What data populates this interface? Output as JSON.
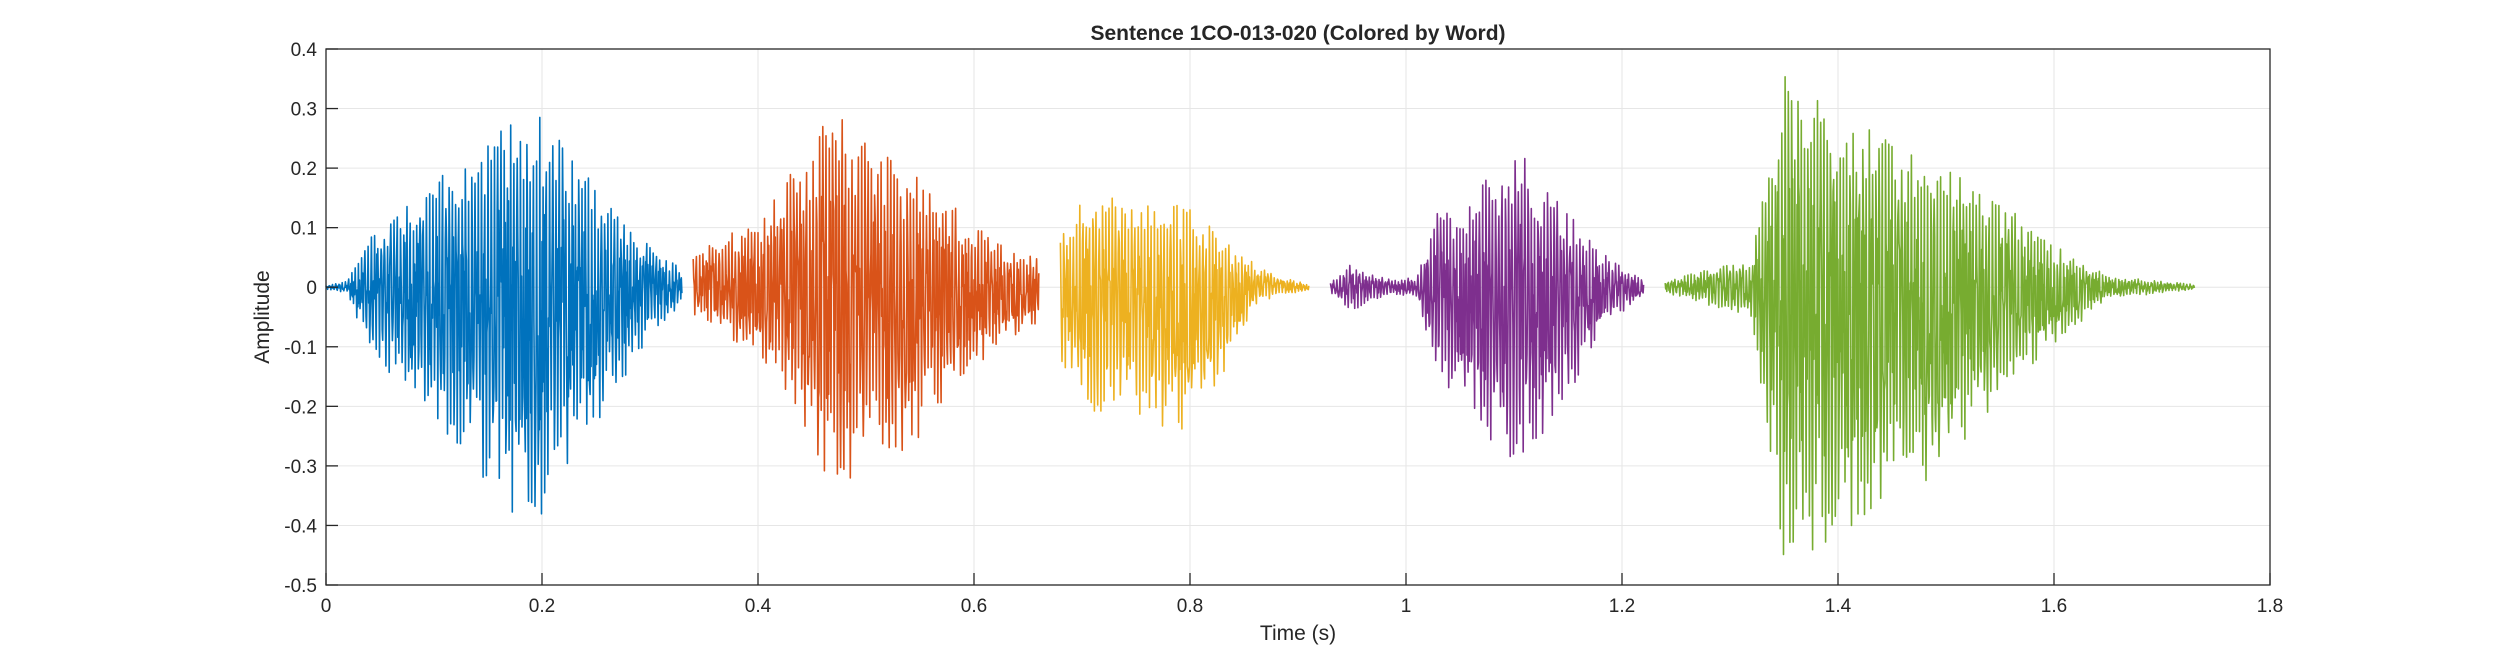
{
  "chart_data": {
    "type": "line",
    "title": "Sentence 1CO-013-020 (Colored by Word)",
    "xlabel": "Time (s)",
    "ylabel": "Amplitude",
    "xlim": [
      0,
      1.8
    ],
    "ylim": [
      -0.5,
      0.4
    ],
    "xticks": [
      0,
      0.2,
      0.4,
      0.6,
      0.8,
      1,
      1.2,
      1.4,
      1.6,
      1.8
    ],
    "xtick_labels": [
      "0",
      "0.2",
      "0.4",
      "0.6",
      "0.8",
      "1",
      "1.2",
      "1.4",
      "1.6",
      "1.8"
    ],
    "yticks": [
      -0.5,
      -0.4,
      -0.3,
      -0.2,
      -0.1,
      0,
      0.1,
      0.2,
      0.3,
      0.4
    ],
    "ytick_labels": [
      "-0.5",
      "-0.4",
      "-0.3",
      "-0.2",
      "-0.1",
      "0",
      "0.1",
      "0.2",
      "0.3",
      "0.4"
    ],
    "grid": true,
    "series": [
      {
        "color": "#0072BD",
        "time_range": [
          0,
          0.33
        ],
        "envelope": {
          "t": [
            0,
            0.02,
            0.03,
            0.06,
            0.1,
            0.15,
            0.19,
            0.22,
            0.26,
            0.3,
            0.33
          ],
          "max": [
            0.003,
            0.01,
            0.06,
            0.13,
            0.18,
            0.24,
            0.32,
            0.24,
            0.15,
            0.07,
            0.03
          ],
          "min": [
            -0.003,
            -0.01,
            -0.06,
            -0.16,
            -0.22,
            -0.33,
            -0.42,
            -0.33,
            -0.2,
            -0.08,
            -0.03
          ]
        }
      },
      {
        "color": "#D95319",
        "time_range": [
          0.34,
          0.66
        ],
        "envelope": {
          "t": [
            0.34,
            0.36,
            0.4,
            0.44,
            0.47,
            0.5,
            0.54,
            0.58,
            0.62,
            0.66
          ],
          "max": [
            0.05,
            0.08,
            0.12,
            0.22,
            0.3,
            0.25,
            0.2,
            0.14,
            0.08,
            0.05
          ],
          "min": [
            -0.05,
            -0.07,
            -0.12,
            -0.25,
            -0.35,
            -0.3,
            -0.28,
            -0.18,
            -0.1,
            -0.06
          ]
        }
      },
      {
        "color": "#EDB120",
        "time_range": [
          0.68,
          0.91
        ],
        "envelope": {
          "t": [
            0.68,
            0.71,
            0.74,
            0.78,
            0.8,
            0.83,
            0.86,
            0.88,
            0.91
          ],
          "max": [
            0.08,
            0.18,
            0.14,
            0.15,
            0.14,
            0.08,
            0.04,
            0.02,
            0.005
          ],
          "min": [
            -0.12,
            -0.23,
            -0.2,
            -0.24,
            -0.24,
            -0.16,
            -0.03,
            -0.015,
            -0.005
          ]
        }
      },
      {
        "color": "#7E2F8E",
        "time_range": [
          0.93,
          1.22
        ],
        "envelope": {
          "t": [
            0.93,
            0.95,
            0.98,
            1.01,
            1.03,
            1.06,
            1.1,
            1.14,
            1.18,
            1.22
          ],
          "max": [
            0.01,
            0.04,
            0.015,
            0.015,
            0.14,
            0.15,
            0.24,
            0.15,
            0.06,
            0.01
          ],
          "min": [
            -0.01,
            -0.04,
            -0.015,
            -0.015,
            -0.16,
            -0.22,
            -0.3,
            -0.22,
            -0.08,
            -0.01
          ]
        }
      },
      {
        "color": "#77AC30",
        "time_range": [
          1.24,
          1.73
        ],
        "envelope": {
          "t": [
            1.24,
            1.28,
            1.32,
            1.35,
            1.4,
            1.45,
            1.5,
            1.55,
            1.6,
            1.65,
            1.7,
            1.73
          ],
          "max": [
            0.01,
            0.03,
            0.05,
            0.37,
            0.31,
            0.24,
            0.21,
            0.15,
            0.07,
            0.02,
            0.01,
            0.005
          ],
          "min": [
            -0.01,
            -0.03,
            -0.05,
            -0.46,
            -0.44,
            -0.34,
            -0.32,
            -0.18,
            -0.1,
            -0.02,
            -0.01,
            -0.005
          ]
        }
      }
    ]
  }
}
